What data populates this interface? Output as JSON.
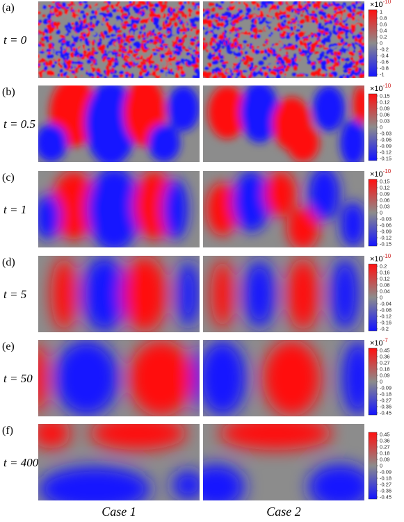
{
  "columns": [
    "Case 1",
    "Case 2"
  ],
  "rows": [
    {
      "panel": "(a)",
      "time": "t = 0",
      "scale": "×10",
      "scale_exp": "-10",
      "ticks": [
        "1",
        "0.8",
        "0.6",
        "0.4",
        "0.2",
        "0",
        "-0.2",
        "-0.4",
        "-0.6",
        "-0.8",
        "-1"
      ]
    },
    {
      "panel": "(b)",
      "time": "t = 0.5",
      "scale": "×10",
      "scale_exp": "-10",
      "ticks": [
        "0.15",
        "0.12",
        "0.09",
        "0.06",
        "0.03",
        "0",
        "-0.03",
        "-0.06",
        "-0.09",
        "-0.12",
        "-0.15"
      ]
    },
    {
      "panel": "(c)",
      "time": "t = 1",
      "scale": "×10",
      "scale_exp": "-10",
      "ticks": [
        "0.15",
        "0.12",
        "0.09",
        "0.06",
        "0.03",
        "0",
        "-0.03",
        "-0.06",
        "-0.09",
        "-0.12",
        "-0.15"
      ]
    },
    {
      "panel": "(d)",
      "time": "t = 5",
      "scale": "×10",
      "scale_exp": "-10",
      "ticks": [
        "0.2",
        "0.16",
        "0.12",
        "0.08",
        "0.04",
        "0",
        "-0.04",
        "-0.08",
        "-0.12",
        "-0.16",
        "-0.2"
      ]
    },
    {
      "panel": "(e)",
      "time": "t = 50",
      "scale": "×10",
      "scale_exp": "-7",
      "ticks": [
        "0.45",
        "0.36",
        "0.27",
        "0.18",
        "0.09",
        "0",
        "-0.09",
        "-0.18",
        "-0.27",
        "-0.36",
        "-0.45"
      ]
    },
    {
      "panel": "(f)",
      "time": "t = 400",
      "scale": "",
      "scale_exp": "",
      "ticks": [
        "0.45",
        "0.36",
        "0.27",
        "0.18",
        "0.09",
        "0",
        "-0.09",
        "-0.18",
        "-0.27",
        "-0.36",
        "-0.45"
      ]
    }
  ],
  "colors": {
    "positive": "#ff1010",
    "neutral": "#8c8c8c",
    "negative": "#1414ff",
    "exponent": "#cc2020"
  }
}
